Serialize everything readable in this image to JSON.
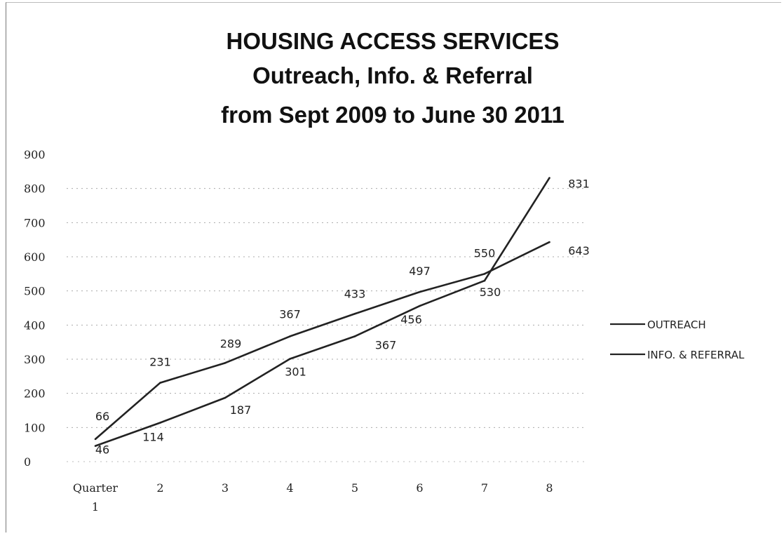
{
  "chart_data": {
    "type": "line",
    "title": [
      "HOUSING ACCESS SERVICES",
      "Outreach, Info. & Referral",
      "from Sept 2009 to June 30 2011"
    ],
    "categories": [
      [
        "Quarter",
        "1"
      ],
      [
        "2"
      ],
      [
        "3"
      ],
      [
        "4"
      ],
      [
        "5"
      ],
      [
        "6"
      ],
      [
        "7"
      ],
      [
        "8"
      ]
    ],
    "ylim": [
      0,
      900
    ],
    "yticks": [
      0,
      100,
      200,
      300,
      400,
      500,
      600,
      700,
      800,
      900
    ],
    "grid": true,
    "legend_position": "right",
    "series": [
      {
        "name": "OUTREACH",
        "values": [
          66,
          231,
          289,
          367,
          433,
          497,
          550,
          643
        ]
      },
      {
        "name": "INFO. & REFERRAL",
        "values": [
          46,
          114,
          187,
          301,
          367,
          456,
          530,
          831
        ]
      }
    ],
    "line_color": "#222222"
  }
}
